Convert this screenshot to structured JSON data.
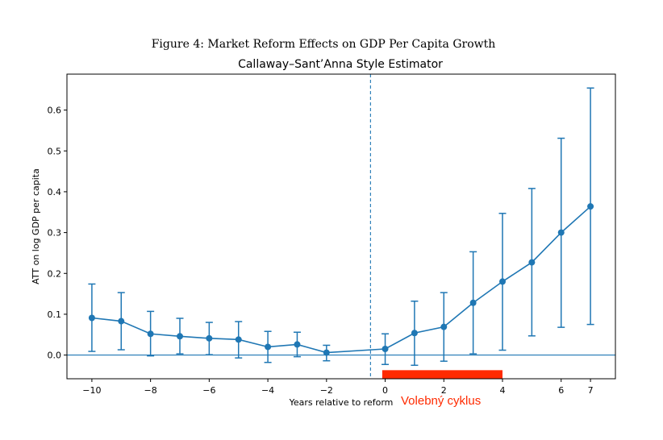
{
  "figure_title": "Figure 4: Market Reform Effects on GDP Per Capita Growth",
  "chart_data": {
    "type": "line",
    "title": "Callaway–Sant’Anna Style Estimator",
    "xlabel": "Years relative to reform",
    "ylabel": "ATT on log GDP per capita",
    "xlim": [
      -10.85,
      7.85
    ],
    "ylim": [
      -0.058,
      0.688
    ],
    "xticks": [
      -10,
      -8,
      -6,
      -4,
      -2,
      0,
      2,
      4,
      6,
      7
    ],
    "xtick_labels": [
      "−10",
      "−8",
      "−6",
      "−4",
      "−2",
      "0",
      "2",
      "4",
      "6",
      "7"
    ],
    "yticks": [
      0.0,
      0.1,
      0.2,
      0.3,
      0.4,
      0.5,
      0.6
    ],
    "ytick_labels": [
      "0.0",
      "0.1",
      "0.2",
      "0.3",
      "0.4",
      "0.5",
      "0.6"
    ],
    "grid": false,
    "series": [
      {
        "x": [
          -10,
          -9,
          -8,
          -7,
          -6,
          -5,
          -4,
          -3,
          -2,
          0,
          1,
          2,
          3,
          4,
          5,
          6,
          7
        ],
        "values": [
          0.091,
          0.083,
          0.052,
          0.046,
          0.041,
          0.038,
          0.02,
          0.026,
          0.006,
          0.015,
          0.054,
          0.069,
          0.128,
          0.18,
          0.227,
          0.3,
          0.364
        ],
        "ci_lower": [
          0.009,
          0.013,
          -0.002,
          0.003,
          0.001,
          -0.007,
          -0.018,
          -0.004,
          -0.014,
          -0.023,
          -0.025,
          -0.015,
          0.003,
          0.012,
          0.047,
          0.068,
          0.075
        ],
        "ci_upper": [
          0.174,
          0.153,
          0.107,
          0.09,
          0.08,
          0.082,
          0.058,
          0.056,
          0.024,
          0.052,
          0.132,
          0.153,
          0.253,
          0.347,
          0.408,
          0.531,
          0.654
        ],
        "color": "#1f77b4"
      }
    ],
    "reference_lines": {
      "vertical_x": -0.5,
      "horizontal_y": 0.0,
      "color": "#1f77b4"
    },
    "annotation": {
      "text": "Volebný cyklus",
      "bar_x": [
        -0.1,
        4.0
      ],
      "bar_y": [
        -0.058,
        -0.037
      ],
      "color": "#ff2a00"
    }
  }
}
